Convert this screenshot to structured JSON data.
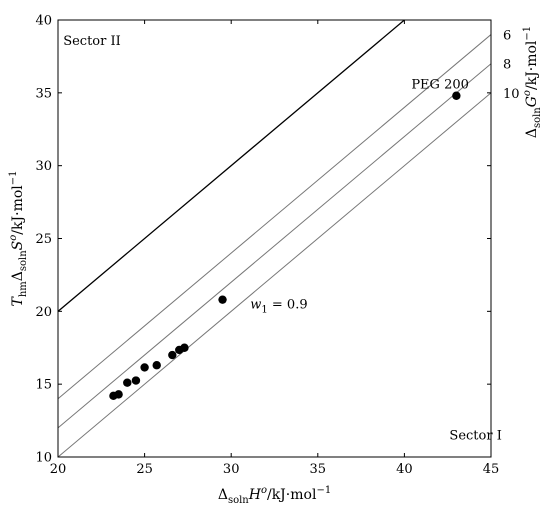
{
  "chart_data": {
    "type": "scatter",
    "x_range": [
      20,
      45
    ],
    "y_range": [
      10,
      40
    ],
    "x_ticks": [
      20,
      25,
      30,
      35,
      40,
      45
    ],
    "y_ticks": [
      10,
      15,
      20,
      25,
      30,
      35,
      40
    ],
    "xlabel": {
      "prefix": "Δ",
      "sub": "soln",
      "main": "H",
      "sup": "o",
      "units": "/kJ·mol",
      "units_sup": "−1"
    },
    "ylabel": {
      "prefix": "T",
      "prefix_sub": "hm",
      "delta": "Δ",
      "sub": "soln",
      "main": "S",
      "sup": "o",
      "units": "/kJ·mol",
      "units_sup": "−1"
    },
    "right_label": {
      "prefix": "Δ",
      "sub": "soln",
      "main": "G",
      "sup": "o",
      "units": "/kJ·mol",
      "units_sup": "−1"
    },
    "reference_lines": [
      {
        "label": "",
        "offset": 0,
        "style": "bold"
      },
      {
        "label": "6",
        "offset": 6,
        "style": "thin"
      },
      {
        "label": "8",
        "offset": 8,
        "style": "thin"
      },
      {
        "label": "10",
        "offset": 10,
        "style": "thin"
      }
    ],
    "points": [
      {
        "x": 23.2,
        "y": 14.2
      },
      {
        "x": 23.5,
        "y": 14.3
      },
      {
        "x": 24.0,
        "y": 15.1
      },
      {
        "x": 24.5,
        "y": 15.25
      },
      {
        "x": 25.0,
        "y": 16.15
      },
      {
        "x": 25.7,
        "y": 16.3
      },
      {
        "x": 26.6,
        "y": 17.0
      },
      {
        "x": 27.0,
        "y": 17.35
      },
      {
        "x": 27.3,
        "y": 17.5
      },
      {
        "x": 29.5,
        "y": 20.8
      },
      {
        "x": 43.0,
        "y": 34.8
      }
    ],
    "annotations": [
      {
        "text": "Sector II",
        "x": 20.3,
        "y": 38.3
      },
      {
        "text": "Sector I",
        "x": 42.6,
        "y": 11.2
      },
      {
        "text": "PEG 200",
        "x": 40.4,
        "y": 35.3
      },
      {
        "text": "0.9",
        "x": 31.1,
        "y": 20.2,
        "prefix": "w",
        "prefix_sub": "1",
        "eq": " = "
      }
    ]
  }
}
